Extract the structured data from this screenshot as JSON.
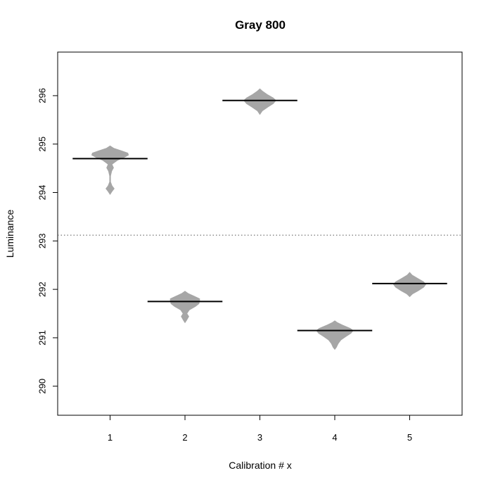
{
  "chart_data": {
    "type": "violin",
    "title": "Gray  800",
    "xlabel": "Calibration # x",
    "ylabel": "Luminance",
    "categories": [
      "1",
      "2",
      "3",
      "4",
      "5"
    ],
    "x_ticks": [
      1,
      2,
      3,
      4,
      5
    ],
    "xlim": [
      0.3,
      5.7
    ],
    "ylim": [
      289.4,
      296.9
    ],
    "y_ticks": [
      290,
      291,
      292,
      293,
      294,
      295,
      296
    ],
    "reference_line": {
      "y": 293.12,
      "style": "dotted"
    },
    "grid": false,
    "violin_color": "#a6a6a6",
    "violins": [
      {
        "category": "1",
        "mean": 294.7,
        "min": 293.95,
        "max": 294.97,
        "density": [
          [
            293.95,
            0
          ],
          [
            294.02,
            0.06
          ],
          [
            294.08,
            0.12
          ],
          [
            294.14,
            0.06
          ],
          [
            294.22,
            0.02
          ],
          [
            294.34,
            0.02
          ],
          [
            294.44,
            0.05
          ],
          [
            294.51,
            0.1
          ],
          [
            294.58,
            0.06
          ],
          [
            294.66,
            0.2
          ],
          [
            294.72,
            0.38
          ],
          [
            294.77,
            0.5
          ],
          [
            294.82,
            0.48
          ],
          [
            294.87,
            0.3
          ],
          [
            294.92,
            0.1
          ],
          [
            294.97,
            0
          ]
        ]
      },
      {
        "category": "2",
        "mean": 291.75,
        "min": 291.3,
        "max": 291.97,
        "density": [
          [
            291.3,
            0
          ],
          [
            291.36,
            0.05
          ],
          [
            291.44,
            0.11
          ],
          [
            291.5,
            0.06
          ],
          [
            291.57,
            0.12
          ],
          [
            291.64,
            0.28
          ],
          [
            291.7,
            0.38
          ],
          [
            291.76,
            0.4
          ],
          [
            291.81,
            0.4
          ],
          [
            291.86,
            0.26
          ],
          [
            291.92,
            0.09
          ],
          [
            291.97,
            0
          ]
        ]
      },
      {
        "category": "3",
        "mean": 295.9,
        "min": 295.6,
        "max": 296.15,
        "density": [
          [
            295.6,
            0
          ],
          [
            295.68,
            0.07
          ],
          [
            295.76,
            0.22
          ],
          [
            295.83,
            0.36
          ],
          [
            295.9,
            0.44
          ],
          [
            295.96,
            0.36
          ],
          [
            296.03,
            0.2
          ],
          [
            296.1,
            0.07
          ],
          [
            296.15,
            0
          ]
        ]
      },
      {
        "category": "4",
        "mean": 291.15,
        "min": 290.75,
        "max": 291.36,
        "density": [
          [
            290.75,
            0
          ],
          [
            290.8,
            0.05
          ],
          [
            290.88,
            0.1
          ],
          [
            290.95,
            0.17
          ],
          [
            291.02,
            0.3
          ],
          [
            291.09,
            0.44
          ],
          [
            291.15,
            0.5
          ],
          [
            291.2,
            0.42
          ],
          [
            291.27,
            0.2
          ],
          [
            291.32,
            0.07
          ],
          [
            291.36,
            0
          ]
        ]
      },
      {
        "category": "5",
        "mean": 292.12,
        "min": 291.84,
        "max": 292.36,
        "density": [
          [
            291.84,
            0
          ],
          [
            291.9,
            0.08
          ],
          [
            291.97,
            0.24
          ],
          [
            292.04,
            0.38
          ],
          [
            292.1,
            0.44
          ],
          [
            292.16,
            0.38
          ],
          [
            292.23,
            0.22
          ],
          [
            292.3,
            0.07
          ],
          [
            292.36,
            0
          ]
        ]
      }
    ]
  }
}
